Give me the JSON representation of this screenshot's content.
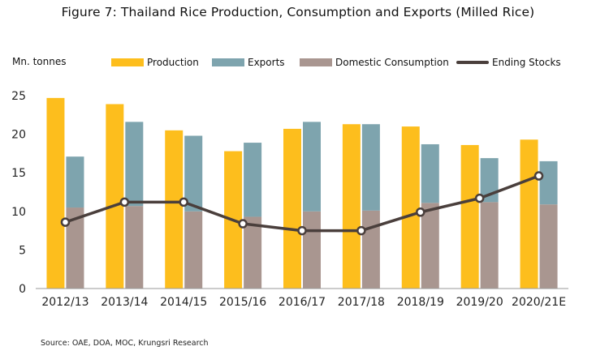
{
  "title": "Figure 7: Thailand Rice Production, Consumption and Exports (Milled Rice)",
  "source": "Source: OAE, DOA, MOC, Krungsri Research",
  "colors": {
    "production": "#FDBE1D",
    "exports": "#7EA4AE",
    "domestic": "#A99690",
    "ending": "#4A3F3C",
    "axis": "#999999"
  },
  "chart_data": {
    "type": "bar",
    "title": "Figure 7: Thailand Rice Production, Consumption and Exports (Milled Rice)",
    "ylabel": "Mn. tonnes",
    "xlabel": "",
    "ylim": [
      0,
      25
    ],
    "yticks": [
      0,
      5,
      10,
      15,
      20,
      25
    ],
    "grid": false,
    "legend_position": "top",
    "categories": [
      "2012/13",
      "2013/14",
      "2014/15",
      "2015/16",
      "2016/17",
      "2017/18",
      "2018/19",
      "2019/20",
      "2020/21E"
    ],
    "series": [
      {
        "name": "Production",
        "kind": "bar",
        "values": [
          24.7,
          23.9,
          20.5,
          17.8,
          20.7,
          21.3,
          21.0,
          18.6,
          19.3
        ]
      },
      {
        "name": "Exports",
        "kind": "stacked-bar",
        "values": [
          6.6,
          10.9,
          9.8,
          9.6,
          11.6,
          11.2,
          7.6,
          5.7,
          5.6
        ]
      },
      {
        "name": "Domestic Consumption",
        "kind": "stacked-bar",
        "values": [
          10.5,
          10.7,
          10.0,
          9.3,
          10.0,
          10.1,
          11.1,
          11.2,
          10.9
        ]
      },
      {
        "name": "Ending Stocks",
        "kind": "line",
        "values": [
          8.6,
          11.2,
          11.2,
          8.4,
          7.5,
          7.5,
          9.9,
          11.7,
          14.6
        ]
      }
    ]
  }
}
